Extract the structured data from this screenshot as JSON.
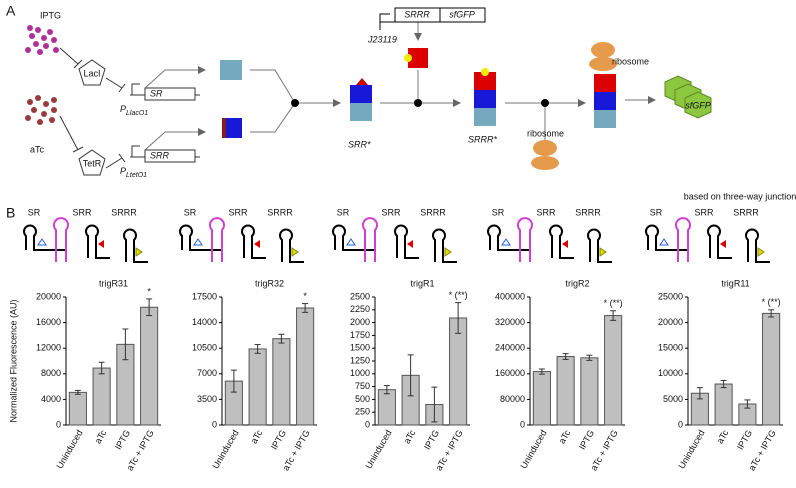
{
  "figure": {
    "panel_a": {
      "label": "A",
      "iptg": "IPTG",
      "laci": "LacI",
      "p_lac": {
        "main": "P",
        "sub": "LlacO1"
      },
      "sr_gene": "SR",
      "atc": "aTc",
      "tetr": "TetR",
      "p_tet": {
        "main": "P",
        "sub": "LtetO1"
      },
      "srr_gene": "SRR",
      "j23119": "J23119",
      "srrr_gene": "SRRR",
      "sfgfp_gene": "sfGFP",
      "srr_star": "SRR*",
      "srrr_star": "SRRR*",
      "ribosome_top": "ribosome",
      "ribosome_bottom": "ribosome",
      "sfgfp_protein": "sfGFP"
    },
    "panel_b": {
      "label": "B",
      "note": "based on three-way junction",
      "schematics": [
        [
          "SR",
          "SRR",
          "SRRR"
        ],
        [
          "SR",
          "SRR",
          "SRRR"
        ],
        [
          "SR",
          "SRR",
          "SRRR"
        ],
        [
          "SR",
          "SRR",
          "SRRR"
        ],
        [
          "SR",
          "SRR",
          "SRRR"
        ]
      ]
    }
  },
  "chart_data": [
    {
      "type": "bar",
      "title": "trigR31",
      "y_label": "Normalized Fluorescence (AU)",
      "categories": [
        "Uninduced",
        "aTc",
        "IPTG",
        "aTc + IPTG"
      ],
      "values": [
        5100,
        8900,
        12600,
        18400
      ],
      "errors": [
        300,
        900,
        2400,
        1300
      ],
      "annotation": "*",
      "color": "#bfbfbf",
      "ylim": [
        0,
        20000
      ],
      "yticks": [
        0,
        4000,
        8000,
        12000,
        16000,
        20000
      ]
    },
    {
      "type": "bar",
      "title": "trigR32",
      "categories": [
        "Uninduced",
        "aTc",
        "IPTG",
        "aTc + IPTG"
      ],
      "values": [
        6000,
        10400,
        11800,
        16000
      ],
      "errors": [
        1500,
        600,
        600,
        600
      ],
      "annotation": "*",
      "color": "#bfbfbf",
      "ylim": [
        0,
        17500
      ],
      "yticks": [
        0,
        3500,
        7000,
        10500,
        14000,
        17500
      ]
    },
    {
      "type": "bar",
      "title": "trigR1",
      "categories": [
        "Uninduced",
        "aTc",
        "IPTG",
        "aTc + IPTG"
      ],
      "values": [
        690,
        970,
        400,
        2090
      ],
      "errors": [
        80,
        400,
        340,
        300
      ],
      "annotation": "* (**)",
      "color": "#bfbfbf",
      "ylim": [
        0,
        2500
      ],
      "yticks": [
        0,
        250,
        500,
        750,
        1000,
        1250,
        1500,
        1750,
        2000,
        2250,
        2500
      ]
    },
    {
      "type": "bar",
      "title": "trigR2",
      "categories": [
        "Uninduced",
        "aTc",
        "IPTG",
        "aTc + IPTG"
      ],
      "values": [
        167000,
        214000,
        210000,
        342000
      ],
      "errors": [
        8000,
        9000,
        8000,
        15000
      ],
      "annotation": "* (**)",
      "color": "#bfbfbf",
      "ylim": [
        0,
        400000
      ],
      "yticks": [
        0,
        80000,
        160000,
        240000,
        320000,
        400000
      ]
    },
    {
      "type": "bar",
      "title": "trigR11",
      "categories": [
        "Uninduced",
        "aTc",
        "IPTG",
        "aTc + IPTG"
      ],
      "values": [
        6200,
        8000,
        4100,
        21800
      ],
      "errors": [
        1100,
        700,
        800,
        700
      ],
      "annotation": "* (**)",
      "color": "#bfbfbf",
      "ylim": [
        0,
        25000
      ],
      "yticks": [
        0,
        5000,
        10000,
        15000,
        20000,
        25000
      ]
    }
  ]
}
